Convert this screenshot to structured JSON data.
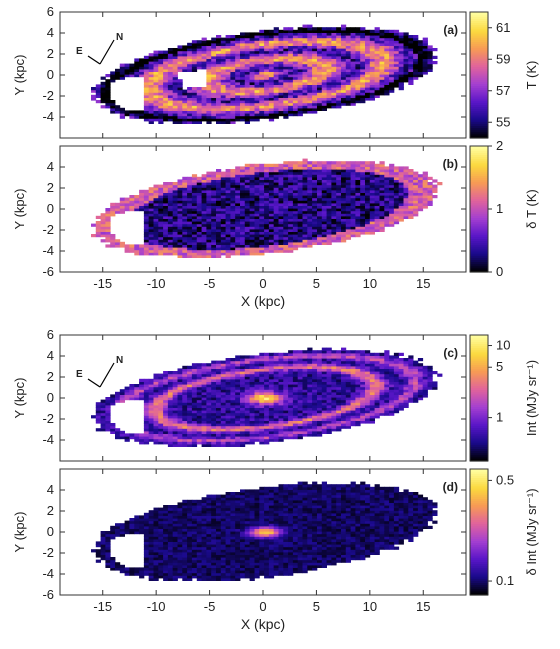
{
  "chart_data": [
    {
      "type": "heatmap",
      "panel_label": "(a)",
      "xlabel": "",
      "ylabel": "Y (kpc)",
      "xlim": [
        -19,
        19
      ],
      "ylim": [
        -6,
        6
      ],
      "xticks": [
        -15,
        -10,
        -5,
        0,
        5,
        10,
        15
      ],
      "yticks": [
        -4,
        -2,
        0,
        2,
        4,
        6
      ],
      "colorbar": {
        "label": "T (K)",
        "min": 54,
        "max": 62,
        "ticks": [
          55,
          57,
          59,
          61
        ],
        "scale": "linear"
      },
      "colormap": [
        "#000000",
        "#1a0a8c",
        "#5a16c8",
        "#a43fd0",
        "#e0639c",
        "#f79a55",
        "#fbd93e",
        "#fffd9e"
      ],
      "compass": {
        "north": "N",
        "east": "E"
      },
      "disk": {
        "x0": 0,
        "y0": 0,
        "a": 16,
        "b": 4.2
      }
    },
    {
      "type": "heatmap",
      "panel_label": "(b)",
      "xlabel": "X (kpc)",
      "ylabel": "Y (kpc)",
      "xlim": [
        -19,
        19
      ],
      "ylim": [
        -6,
        6
      ],
      "xticks": [
        -15,
        -10,
        -5,
        0,
        5,
        10,
        15
      ],
      "yticks": [
        -6,
        -4,
        -2,
        0,
        2,
        4
      ],
      "colorbar": {
        "label": "δ T (K)",
        "min": 0,
        "max": 2,
        "ticks": [
          0,
          1,
          2
        ],
        "scale": "linear"
      },
      "colormap": [
        "#000000",
        "#1a0a8c",
        "#5a16c8",
        "#a43fd0",
        "#e0639c",
        "#f79a55",
        "#fbd93e",
        "#fffd9e"
      ],
      "disk": {
        "x0": 0,
        "y0": 0,
        "a": 16,
        "b": 4.2
      }
    },
    {
      "type": "heatmap",
      "panel_label": "(c)",
      "xlabel": "",
      "ylabel": "Y (kpc)",
      "xlim": [
        -19,
        19
      ],
      "ylim": [
        -6,
        6
      ],
      "xticks": [
        -15,
        -10,
        -5,
        0,
        5,
        10,
        15
      ],
      "yticks": [
        -4,
        -2,
        0,
        2,
        4,
        6
      ],
      "colorbar": {
        "label": "Int (MJy sr⁻¹)",
        "min": 0.25,
        "max": 14,
        "ticks": [
          1,
          5,
          10
        ],
        "scale": "log"
      },
      "colormap": [
        "#000000",
        "#1a0a8c",
        "#5a16c8",
        "#a43fd0",
        "#e0639c",
        "#f79a55",
        "#fbd93e",
        "#fffd9e"
      ],
      "compass": {
        "north": "N",
        "east": "E"
      },
      "disk": {
        "x0": 0,
        "y0": 0,
        "a": 16,
        "b": 4.2
      }
    },
    {
      "type": "heatmap",
      "panel_label": "(d)",
      "xlabel": "X (kpc)",
      "ylabel": "Y (kpc)",
      "xlim": [
        -19,
        19
      ],
      "ylim": [
        -6,
        6
      ],
      "xticks": [
        -15,
        -10,
        -5,
        0,
        5,
        10,
        15
      ],
      "yticks": [
        -6,
        -4,
        -2,
        0,
        2,
        4
      ],
      "colorbar": {
        "label": "δ Int (MJy sr⁻¹)",
        "min": 0.08,
        "max": 0.6,
        "ticks": [
          0.1,
          0.5
        ],
        "scale": "log"
      },
      "colormap": [
        "#000000",
        "#1a0a8c",
        "#5a16c8",
        "#a43fd0",
        "#e0639c",
        "#f79a55",
        "#fbd93e",
        "#fffd9e"
      ],
      "disk": {
        "x0": 0,
        "y0": 0,
        "a": 16,
        "b": 4.2
      }
    }
  ]
}
